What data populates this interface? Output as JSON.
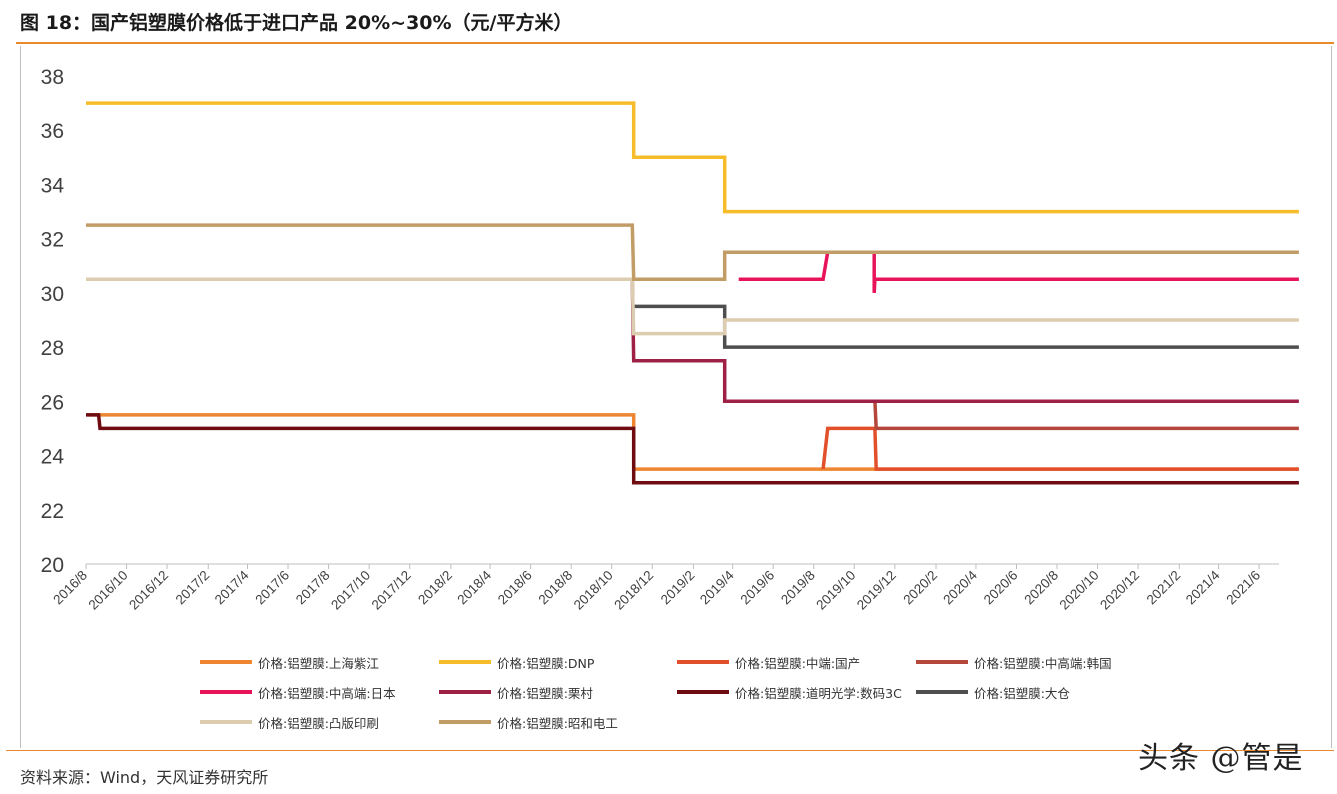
{
  "header": {
    "title": "图 18：国产铝塑膜价格低于进口产品 20%~30%（元/平方米）"
  },
  "footer": {
    "source": "资料来源：Wind，天风证券研究所",
    "watermark": "头条 @管是"
  },
  "chart_data": {
    "type": "line",
    "title": "",
    "xlabel": "",
    "ylabel": "",
    "ylim": [
      20,
      38
    ],
    "yticks": [
      "20",
      "22",
      "24",
      "26",
      "28",
      "30",
      "32",
      "34",
      "36",
      "38"
    ],
    "xlim": [
      "2016-08",
      "2021-07"
    ],
    "xticks": [
      "2016/8",
      "2016/10",
      "2016/12",
      "2017/2",
      "2017/4",
      "2017/6",
      "2017/8",
      "2017/10",
      "2017/12",
      "2018/2",
      "2018/4",
      "2018/6",
      "2018/8",
      "2018/10",
      "2018/12",
      "2019/2",
      "2019/4",
      "2019/6",
      "2019/8",
      "2019/10",
      "2019/12",
      "2020/2",
      "2020/4",
      "2020/6",
      "2020/8",
      "2020/10",
      "2020/12",
      "2021/2",
      "2021/4",
      "2021/6"
    ],
    "grid": false,
    "legend_position": "bottom",
    "series": [
      {
        "name": "价格:铝塑膜:上海紫江",
        "color": "#ee8530",
        "points": [
          [
            "2016-08-05",
            25.5
          ],
          [
            "2018-11-03",
            25.5
          ],
          [
            "2018-11-03",
            23.5
          ],
          [
            "2021-07-31",
            23.5
          ]
        ]
      },
      {
        "name": "价格:铝塑膜:DNP",
        "color": "#f7bc2a",
        "points": [
          [
            "2016-08-01",
            37
          ],
          [
            "2018-11-03",
            37
          ],
          [
            "2018-11-03",
            35
          ],
          [
            "2019-03-20",
            35
          ],
          [
            "2019-03-20",
            33
          ],
          [
            "2021-07-31",
            33
          ]
        ]
      },
      {
        "name": "价格:铝塑膜:中端:国产",
        "color": "#e1502a",
        "points": [
          [
            "2019-08-15",
            23.5
          ],
          [
            "2019-08-22",
            25
          ],
          [
            "2019-11-01",
            25
          ],
          [
            "2019-11-03",
            23.5
          ],
          [
            "2021-07-31",
            23.5
          ]
        ]
      },
      {
        "name": "价格:铝塑膜:中高端:韩国",
        "color": "#b4463a",
        "points": [
          [
            "2019-11-01",
            26
          ],
          [
            "2019-11-03",
            25
          ],
          [
            "2021-07-31",
            25
          ]
        ]
      },
      {
        "name": "价格:铝塑膜:中高端:日本",
        "color": "#e8145a",
        "points": [
          [
            "2019-04-10",
            30.5
          ],
          [
            "2019-08-15",
            30.5
          ],
          [
            "2019-08-22",
            31.5
          ],
          [
            "2019-10-31",
            31.5
          ],
          [
            "2019-10-31",
            30
          ],
          [
            "2019-11-01",
            30.5
          ],
          [
            "2021-07-31",
            30.5
          ]
        ]
      },
      {
        "name": "价格:铝塑膜:栗村",
        "color": "#9e2045",
        "points": [
          [
            "2018-11-01",
            30.5
          ],
          [
            "2018-11-03",
            27.5
          ],
          [
            "2019-03-20",
            27.5
          ],
          [
            "2019-03-20",
            26
          ],
          [
            "2021-07-31",
            26
          ]
        ]
      },
      {
        "name": "价格:铝塑膜:道明光学:数码3C",
        "color": "#6e0c12",
        "points": [
          [
            "2016-08-01",
            25.5
          ],
          [
            "2016-08-20",
            25.5
          ],
          [
            "2016-08-22",
            25
          ],
          [
            "2018-11-03",
            25
          ],
          [
            "2018-11-03",
            23
          ],
          [
            "2021-07-31",
            23
          ]
        ]
      },
      {
        "name": "价格:铝塑膜:大仓",
        "color": "#4e4e4e",
        "points": [
          [
            "2018-11-03",
            29.5
          ],
          [
            "2019-03-20",
            29.5
          ],
          [
            "2019-03-20",
            28
          ],
          [
            "2021-07-31",
            28
          ]
        ]
      },
      {
        "name": "价格:铝塑膜:凸版印刷",
        "color": "#dcccb0",
        "points": [
          [
            "2016-08-01",
            30.5
          ],
          [
            "2018-11-01",
            30.5
          ],
          [
            "2018-11-03",
            28.5
          ],
          [
            "2019-03-20",
            28.5
          ],
          [
            "2019-03-20",
            29
          ],
          [
            "2021-07-31",
            29
          ]
        ]
      },
      {
        "name": "价格:铝塑膜:昭和电工",
        "color": "#c29c66",
        "points": [
          [
            "2016-08-01",
            32.5
          ],
          [
            "2018-11-01",
            32.5
          ],
          [
            "2018-11-03",
            30.5
          ],
          [
            "2019-03-20",
            30.5
          ],
          [
            "2019-03-20",
            31.5
          ],
          [
            "2021-07-31",
            31.5
          ]
        ]
      }
    ]
  }
}
